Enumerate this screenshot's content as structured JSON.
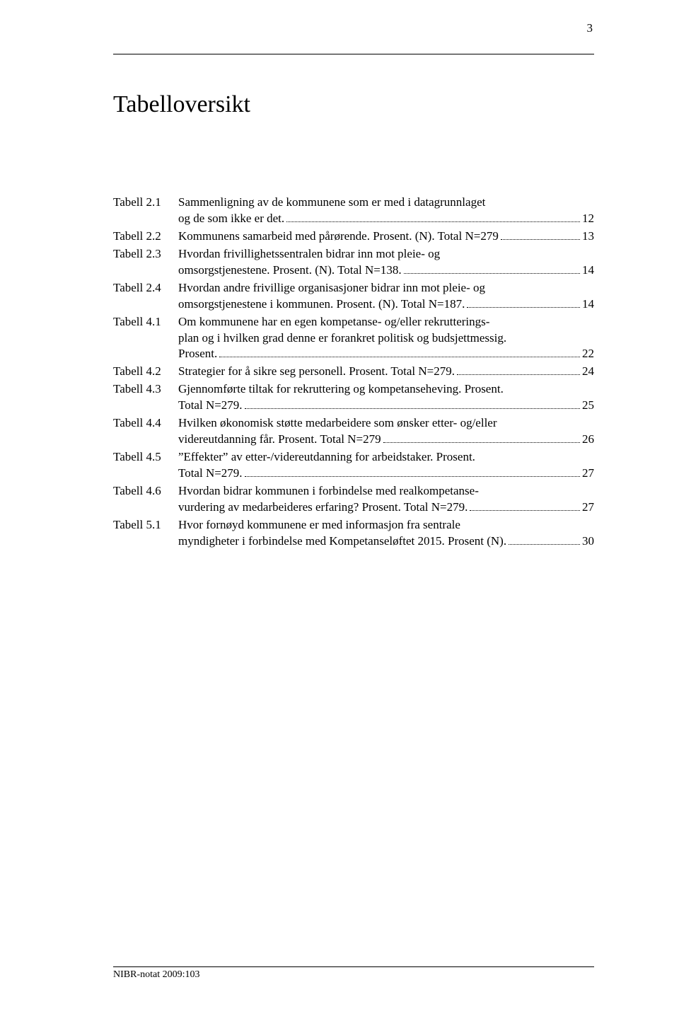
{
  "page_number": "3",
  "title": "Tabelloversikt",
  "footer": "NIBR-notat 2009:103",
  "colors": {
    "text": "#000000",
    "background": "#ffffff",
    "rule": "#000000"
  },
  "typography": {
    "body_font": "Garamond",
    "body_size_pt": 12,
    "title_size_pt": 24
  },
  "entries": [
    {
      "label": "Tabell 2.1",
      "lines": [
        "Sammenligning av de kommunene som er med i datagrunnlaget",
        "og de som ikke er det."
      ],
      "page": "12"
    },
    {
      "label": "Tabell 2.2",
      "lines": [
        "Kommunens samarbeid med pårørende. Prosent. (N). Total N=279"
      ],
      "page": "13"
    },
    {
      "label": "Tabell 2.3",
      "lines": [
        "Hvordan frivillighetssentralen bidrar inn mot pleie- og",
        "omsorgstjenestene. Prosent. (N). Total N=138."
      ],
      "page": "14"
    },
    {
      "label": "Tabell 2.4",
      "lines": [
        "Hvordan andre frivillige organisasjoner bidrar inn mot pleie- og",
        "omsorgstjenestene i kommunen. Prosent. (N). Total N=187."
      ],
      "page": "14"
    },
    {
      "label": "Tabell 4.1",
      "lines": [
        "Om kommunene har en egen kompetanse- og/eller rekrutterings-",
        "plan og i hvilken grad denne er forankret politisk og budsjettmessig.",
        "Prosent."
      ],
      "page": "22"
    },
    {
      "label": "Tabell 4.2",
      "lines": [
        "Strategier for å sikre seg personell. Prosent. Total N=279."
      ],
      "page": "24"
    },
    {
      "label": "Tabell 4.3",
      "lines": [
        "Gjennomførte tiltak for rekruttering og kompetanseheving. Prosent.",
        "Total N=279."
      ],
      "page": "25"
    },
    {
      "label": "Tabell 4.4",
      "lines": [
        "Hvilken økonomisk støtte medarbeidere som ønsker etter- og/eller",
        "videreutdanning får. Prosent. Total N=279"
      ],
      "page": "26"
    },
    {
      "label": "Tabell 4.5",
      "lines": [
        "”Effekter” av etter-/videreutdanning for arbeidstaker. Prosent.",
        "Total N=279."
      ],
      "page": "27"
    },
    {
      "label": "Tabell 4.6",
      "lines": [
        "Hvordan bidrar kommunen i forbindelse med realkompetanse-",
        "vurdering av medarbeideres erfaring? Prosent. Total N=279."
      ],
      "page": "27"
    },
    {
      "label": "Tabell 5.1",
      "lines": [
        "Hvor fornøyd kommunene er med informasjon fra sentrale",
        "myndigheter i forbindelse med Kompetanseløftet 2015. Prosent (N)."
      ],
      "page": "30"
    }
  ]
}
